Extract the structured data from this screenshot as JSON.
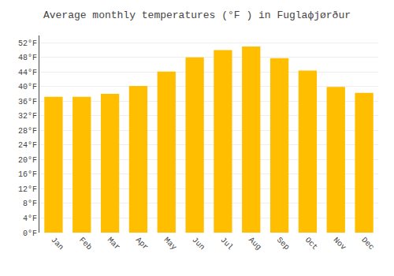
{
  "chart_data": {
    "type": "bar",
    "title": "Average monthly temperatures (°F ) in Fuglaфjørður",
    "categories": [
      "Jan",
      "Feb",
      "Mar",
      "Apr",
      "May",
      "Jun",
      "Jul",
      "Aug",
      "Sep",
      "Oct",
      "Nov",
      "Dec"
    ],
    "values": [
      37.2,
      37.2,
      38.0,
      40.2,
      44.1,
      48.0,
      50.0,
      51.0,
      47.8,
      44.4,
      39.9,
      38.3
    ],
    "color": "#FFBE00",
    "ylim": [
      0,
      54
    ],
    "yticks": [
      {
        "value": 0,
        "label": "0°F"
      },
      {
        "value": 4,
        "label": "4°F"
      },
      {
        "value": 8,
        "label": "8°F"
      },
      {
        "value": 12,
        "label": "12°F"
      },
      {
        "value": 16,
        "label": "16°F"
      },
      {
        "value": 20,
        "label": "20°F"
      },
      {
        "value": 24,
        "label": "24°F"
      },
      {
        "value": 28,
        "label": "28°F"
      },
      {
        "value": 32,
        "label": "32°F"
      },
      {
        "value": 36,
        "label": "36°F"
      },
      {
        "value": 40,
        "label": "40°F"
      },
      {
        "value": 44,
        "label": "44°F"
      },
      {
        "value": 48,
        "label": "48°F"
      },
      {
        "value": 52,
        "label": "52°F"
      }
    ],
    "grid": true
  }
}
